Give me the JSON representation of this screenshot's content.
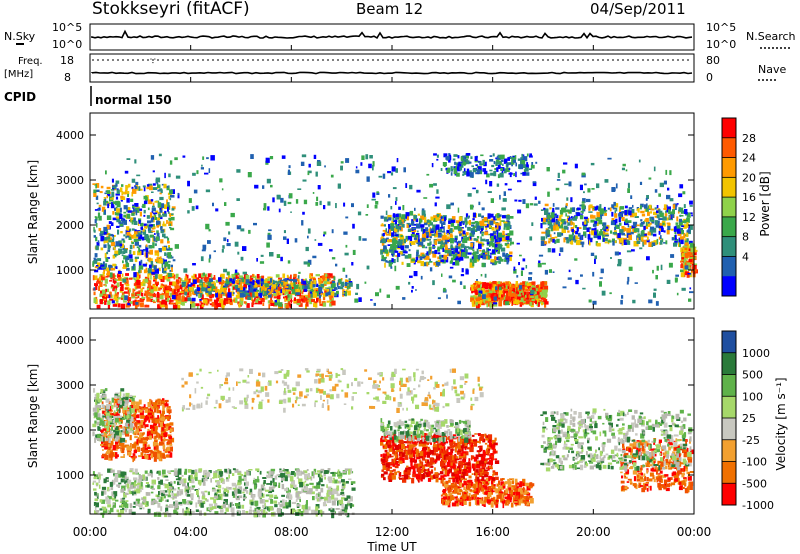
{
  "header": {
    "station": "Stokkseyri (fitACF)",
    "beam": "Beam 12",
    "date": "04/Sep/2011"
  },
  "side_labels": {
    "nsky": "N.Sky",
    "nsearch": "N.Search",
    "freq": "Freq.",
    "freq_unit": "[MHz]",
    "nave": "Nave",
    "cpid": "CPID",
    "cpid_value": "normal 150"
  },
  "chart_data": [
    {
      "type": "line",
      "name": "noise",
      "yticks_left": [
        "10^5",
        "10^0"
      ],
      "yticks_right": [
        "10^5",
        "10^0"
      ],
      "x": [
        "00:00",
        "04:00",
        "08:00",
        "12:00",
        "16:00",
        "20:00",
        "00:00"
      ]
    },
    {
      "type": "line",
      "name": "frequency",
      "yticks_left": [
        "18",
        "8"
      ],
      "yticks_right": [
        "80",
        "0"
      ]
    },
    {
      "type": "heatmap",
      "name": "power",
      "ylabel": "Slant Range [km]",
      "yticks": [
        "4000",
        "3000",
        "2000",
        "1000"
      ],
      "xticks": [
        "00:00",
        "04:00",
        "08:00",
        "12:00",
        "16:00",
        "20:00",
        "00:00"
      ],
      "colorbar": {
        "label": "Power [dB]",
        "ticks": [
          "28",
          "24",
          "20",
          "16",
          "12",
          "8",
          "4"
        ],
        "colors": [
          "#ff0000",
          "#ff5a00",
          "#ff9a00",
          "#f2c400",
          "#8fd24a",
          "#3aa84a",
          "#2f8f7a",
          "#2060b0",
          "#0000ff"
        ]
      }
    },
    {
      "type": "heatmap",
      "name": "velocity",
      "ylabel": "Slant Range [km]",
      "yticks": [
        "4000",
        "3000",
        "2000",
        "1000"
      ],
      "xticks": [
        "00:00",
        "04:00",
        "08:00",
        "12:00",
        "16:00",
        "20:00",
        "00:00"
      ],
      "xlabel": "Time UT",
      "colorbar": {
        "label": "Velocity [m s⁻¹]",
        "ticks": [
          "1000",
          "500",
          "100",
          "25",
          "-25",
          "-100",
          "-500",
          "-1000"
        ],
        "colors": [
          "#1f4fa0",
          "#2a7a3a",
          "#5fb24a",
          "#a6d86a",
          "#c8c8c0",
          "#f2a030",
          "#f07000",
          "#ff0000"
        ]
      }
    }
  ]
}
